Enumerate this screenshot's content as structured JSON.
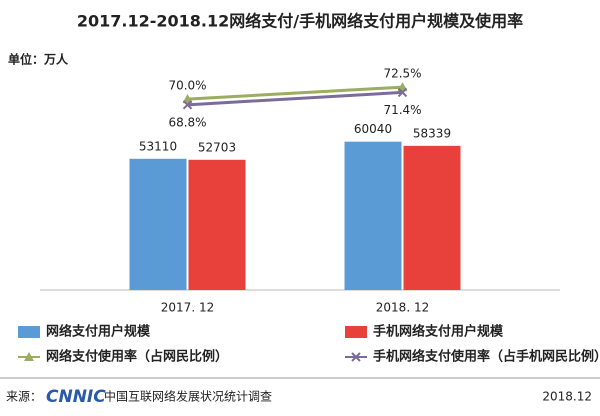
{
  "chart_data": {
    "type": "bar",
    "title": "2017.12-2018.12网络支付/手机网络支付用户规模及使用率",
    "unit": "单位：万人",
    "categories": [
      "2017. 12",
      "2018. 12"
    ],
    "ylim": [
      0,
      85000
    ],
    "y2lim": [
      30,
      74
    ],
    "series": [
      {
        "name": "网络支付用户规模",
        "type": "bar",
        "color": "#5b9bd5",
        "values": [
          53110,
          60040
        ]
      },
      {
        "name": "手机网络支付用户规模",
        "type": "bar",
        "color": "#e8403a",
        "values": [
          52703,
          58339
        ]
      },
      {
        "name": "网络支付使用率（占网民比例）",
        "type": "line",
        "axis": "y2",
        "marker": "triangle",
        "color": "#9bad5e",
        "values": [
          70.0,
          72.5
        ],
        "value_labels": [
          "70.0%",
          "72.5%"
        ]
      },
      {
        "name": "手机网络支付使用率（占手机网民比例）",
        "type": "line",
        "axis": "y2",
        "marker": "x",
        "color": "#7b6c9c",
        "values": [
          68.8,
          71.4
        ],
        "value_labels": [
          "68.8%",
          "71.4%"
        ]
      }
    ],
    "source": {
      "label": "来源：",
      "logo": "CNNIC",
      "text": "中国互联网络发展状况统计调查",
      "date": "2018.12"
    }
  }
}
